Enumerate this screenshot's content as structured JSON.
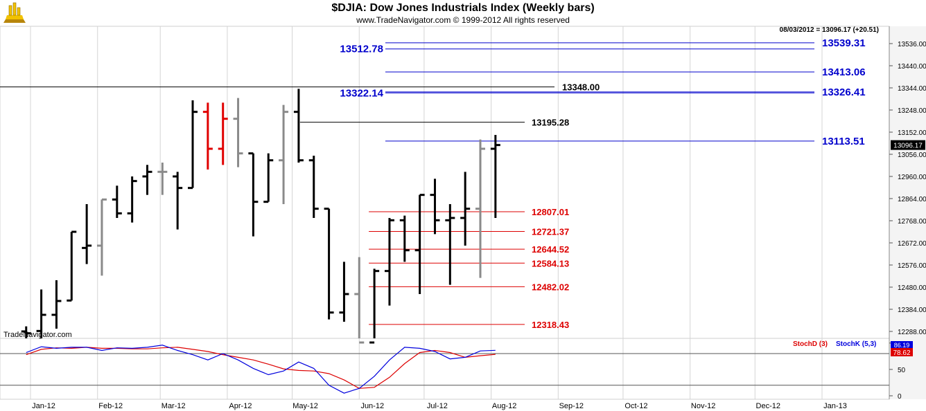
{
  "header": {
    "title": "$DJIA:  Dow Jones Industrials Index  (Weekly bars)",
    "subtitle": "www.TradeNavigator.com © 1999-2012 All rights reserved",
    "last_value_info": "08/03/2012 = 13096.17 (+20.51)",
    "watermark": "TradeNavigator.com"
  },
  "colors": {
    "up_bar": "#000000",
    "highlight_bar": "#e00000",
    "gray_bar": "#8a8a8a",
    "fib_blue": "#0000cc",
    "level_red": "#dd0000",
    "stoch_d": "#dd0000",
    "stoch_k": "#0000dd"
  },
  "chart_data": [
    {
      "type": "ohlc",
      "title": "$DJIA:  Dow Jones Industrials Index  (Weekly bars)",
      "x_tick_labels": [
        "Jan-12",
        "Feb-12",
        "Mar-12",
        "Apr-12",
        "May-12",
        "Jun-12",
        "Jul-12",
        "Aug-12",
        "Sep-12",
        "Oct-12",
        "Nov-12",
        "Dec-12",
        "Jan-13"
      ],
      "y_tick_labels": [
        "13536.00",
        "13440.00",
        "13344.00",
        "13248.00",
        "13152.00",
        "13056.00",
        "12960.00",
        "12864.00",
        "12768.00",
        "12672.00",
        "12576.00",
        "12480.00",
        "12384.00",
        "12288.00"
      ],
      "ylim": [
        12236,
        13600
      ],
      "last_price_label": "13096.17",
      "bars": [
        {
          "date": "2011-12-30",
          "open": 12288,
          "high": 12310,
          "low": 12236,
          "close": 12280,
          "color": "black"
        },
        {
          "date": "2012-01-06",
          "open": 12290,
          "high": 12470,
          "low": 12236,
          "close": 12360,
          "color": "black"
        },
        {
          "date": "2012-01-13",
          "open": 12360,
          "high": 12510,
          "low": 12300,
          "close": 12420,
          "color": "black"
        },
        {
          "date": "2012-01-20",
          "open": 12422,
          "high": 12720,
          "low": 12422,
          "close": 12720,
          "color": "black"
        },
        {
          "date": "2012-01-27",
          "open": 12650,
          "high": 12840,
          "low": 12580,
          "close": 12660,
          "color": "black"
        },
        {
          "date": "2012-02-03",
          "open": 12660,
          "high": 12860,
          "low": 12530,
          "close": 12860,
          "color": "gray"
        },
        {
          "date": "2012-02-10",
          "open": 12860,
          "high": 12920,
          "low": 12780,
          "close": 12800,
          "color": "black"
        },
        {
          "date": "2012-02-17",
          "open": 12800,
          "high": 12960,
          "low": 12760,
          "close": 12940,
          "color": "black"
        },
        {
          "date": "2012-02-24",
          "open": 12960,
          "high": 13010,
          "low": 12880,
          "close": 12980,
          "color": "black"
        },
        {
          "date": "2012-03-02",
          "open": 12980,
          "high": 13020,
          "low": 12880,
          "close": 12980,
          "color": "gray"
        },
        {
          "date": "2012-03-09",
          "open": 12960,
          "high": 12980,
          "low": 12730,
          "close": 12910,
          "color": "black"
        },
        {
          "date": "2012-03-16",
          "open": 12910,
          "high": 13290,
          "low": 12910,
          "close": 13240,
          "color": "black"
        },
        {
          "date": "2012-03-23",
          "open": 13240,
          "high": 13280,
          "low": 12990,
          "close": 13080,
          "color": "red"
        },
        {
          "date": "2012-03-30",
          "open": 13080,
          "high": 13280,
          "low": 13010,
          "close": 13210,
          "color": "red"
        },
        {
          "date": "2012-04-06",
          "open": 13210,
          "high": 13300,
          "low": 13000,
          "close": 13060,
          "color": "gray"
        },
        {
          "date": "2012-04-13",
          "open": 13060,
          "high": 13060,
          "low": 12700,
          "close": 12850,
          "color": "black"
        },
        {
          "date": "2012-04-20",
          "open": 12850,
          "high": 13060,
          "low": 12850,
          "close": 13030,
          "color": "black"
        },
        {
          "date": "2012-04-27",
          "open": 13030,
          "high": 13270,
          "low": 12840,
          "close": 13240,
          "color": "gray"
        },
        {
          "date": "2012-05-04",
          "open": 13240,
          "high": 13340,
          "low": 13020,
          "close": 13030,
          "color": "black"
        },
        {
          "date": "2012-05-11",
          "open": 13030,
          "high": 13050,
          "low": 12780,
          "close": 12820,
          "color": "black"
        },
        {
          "date": "2012-05-18",
          "open": 12820,
          "high": 12820,
          "low": 12340,
          "close": 12370,
          "color": "black"
        },
        {
          "date": "2012-05-25",
          "open": 12370,
          "high": 12590,
          "low": 12330,
          "close": 12450,
          "color": "black"
        },
        {
          "date": "2012-06-01",
          "open": 12450,
          "high": 12610,
          "low": 12236,
          "close": 12240,
          "color": "gray"
        },
        {
          "date": "2012-06-08",
          "open": 12240,
          "high": 12560,
          "low": 12236,
          "close": 12550,
          "color": "black"
        },
        {
          "date": "2012-06-15",
          "open": 12550,
          "high": 12780,
          "low": 12400,
          "close": 12770,
          "color": "black"
        },
        {
          "date": "2012-06-22",
          "open": 12770,
          "high": 12790,
          "low": 12590,
          "close": 12640,
          "color": "black"
        },
        {
          "date": "2012-06-29",
          "open": 12640,
          "high": 12880,
          "low": 12450,
          "close": 12880,
          "color": "black"
        },
        {
          "date": "2012-07-06",
          "open": 12880,
          "high": 12950,
          "low": 12710,
          "close": 12770,
          "color": "black"
        },
        {
          "date": "2012-07-13",
          "open": 12770,
          "high": 12840,
          "low": 12490,
          "close": 12780,
          "color": "black"
        },
        {
          "date": "2012-07-20",
          "open": 12780,
          "high": 12980,
          "low": 12660,
          "close": 12820,
          "color": "black"
        },
        {
          "date": "2012-07-27",
          "open": 12820,
          "high": 13120,
          "low": 12520,
          "close": 13080,
          "color": "gray"
        },
        {
          "date": "2012-08-03",
          "open": 13080,
          "high": 13140,
          "low": 12780,
          "close": 13096.17,
          "color": "black"
        }
      ],
      "horizontal_lines": [
        {
          "value": 13539.31,
          "label": "13539.31",
          "color": "blue",
          "side": "right"
        },
        {
          "value": 13512.78,
          "label": "13512.78",
          "color": "blue",
          "side": "left"
        },
        {
          "value": 13413.06,
          "label": "13413.06",
          "color": "blue",
          "side": "right"
        },
        {
          "value": 13348.0,
          "label": "13348.00",
          "color": "black",
          "side": "center"
        },
        {
          "value": 13326.41,
          "label": "13326.41",
          "color": "blue",
          "side": "right"
        },
        {
          "value": 13322.14,
          "label": "13322.14",
          "color": "blue",
          "side": "left"
        },
        {
          "value": 13195.28,
          "label": "13195.28",
          "color": "black",
          "side": "center"
        },
        {
          "value": 13113.51,
          "label": "13113.51",
          "color": "blue",
          "side": "right"
        },
        {
          "value": 12807.01,
          "label": "12807.01",
          "color": "red",
          "side": "center"
        },
        {
          "value": 12721.37,
          "label": "12721.37",
          "color": "red",
          "side": "center"
        },
        {
          "value": 12644.52,
          "label": "12644.52",
          "color": "red",
          "side": "center"
        },
        {
          "value": 12584.13,
          "label": "12584.13",
          "color": "red",
          "side": "center"
        },
        {
          "value": 12482.02,
          "label": "12482.02",
          "color": "red",
          "side": "center"
        },
        {
          "value": 12318.43,
          "label": "12318.43",
          "color": "red",
          "side": "center"
        }
      ]
    },
    {
      "type": "line",
      "ylim": [
        0,
        100
      ],
      "y_tick_labels": [
        "100",
        "50",
        "0"
      ],
      "x_tick_labels": [
        "Jan-12",
        "Feb-12",
        "Mar-12",
        "Apr-12",
        "May-12",
        "Jun-12",
        "Jul-12",
        "Aug-12",
        "Sep-12",
        "Oct-12",
        "Nov-12",
        "Dec-12",
        "Jan-13"
      ],
      "legend": [
        "StochD (3)",
        "StochK (5,3)"
      ],
      "last_value_labels": [
        "86.19",
        "78.62"
      ],
      "reference_lines": [
        80,
        20
      ],
      "x": [
        "2011-12-30",
        "2012-01-06",
        "2012-01-13",
        "2012-01-20",
        "2012-01-27",
        "2012-02-03",
        "2012-02-10",
        "2012-02-17",
        "2012-02-24",
        "2012-03-02",
        "2012-03-09",
        "2012-03-16",
        "2012-03-23",
        "2012-03-30",
        "2012-04-06",
        "2012-04-13",
        "2012-04-20",
        "2012-04-27",
        "2012-05-04",
        "2012-05-11",
        "2012-05-18",
        "2012-05-25",
        "2012-06-01",
        "2012-06-08",
        "2012-06-15",
        "2012-06-22",
        "2012-06-29",
        "2012-07-06",
        "2012-07-13",
        "2012-07-20",
        "2012-07-27",
        "2012-08-03"
      ],
      "series": [
        {
          "name": "StochD (3)",
          "color": "red",
          "values": [
            78,
            88,
            91,
            90,
            92,
            90,
            90,
            89,
            89,
            91,
            92,
            88,
            84,
            78,
            73,
            68,
            60,
            51,
            48,
            47,
            42,
            30,
            14,
            16,
            35,
            61,
            82,
            86,
            82,
            73,
            76,
            78.62
          ]
        },
        {
          "name": "StochK (5,3)",
          "color": "blue",
          "values": [
            82,
            93,
            90,
            92,
            92,
            86,
            91,
            90,
            92,
            96,
            86,
            78,
            68,
            80,
            68,
            52,
            40,
            47,
            64,
            52,
            20,
            5,
            14,
            37,
            68,
            92,
            90,
            84,
            70,
            73,
            85,
            86.19
          ]
        }
      ]
    }
  ]
}
